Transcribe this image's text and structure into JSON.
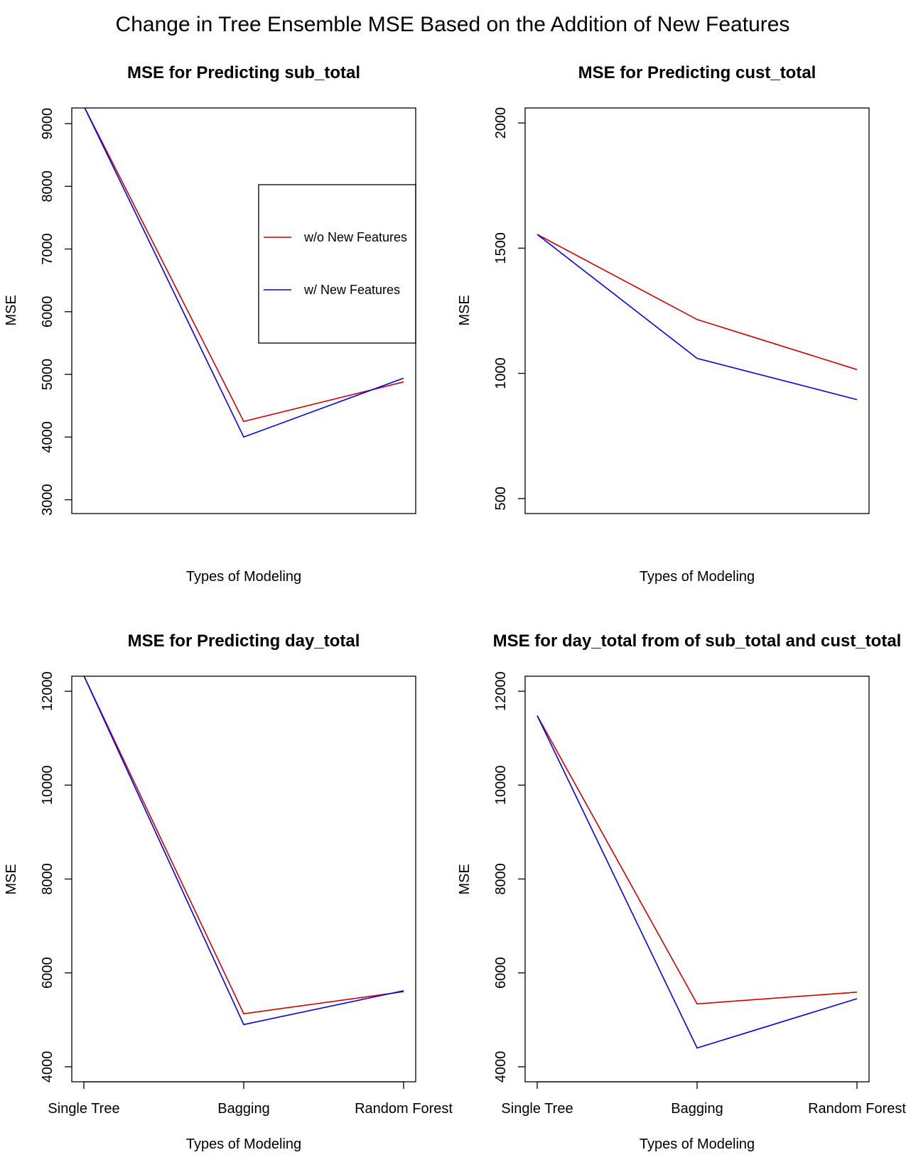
{
  "title": "Change in Tree Ensemble MSE Based on the Addition of New Features",
  "colors": {
    "without": "#d40000",
    "with": "#0000ee"
  },
  "chart_data": [
    {
      "type": "line",
      "title": "MSE for Predicting sub_total",
      "xlabel": "Types of Modeling",
      "ylabel": "MSE",
      "categories": [
        "Single Tree",
        "Bagging",
        "Random Forest"
      ],
      "show_xticks": false,
      "ylim": [
        2780,
        9250
      ],
      "yticks": [
        3000,
        4000,
        5000,
        6000,
        7000,
        8000,
        9000
      ],
      "series": [
        {
          "name": "w/o New Features",
          "color": "#d40000",
          "values": [
            9280,
            4250,
            4880
          ]
        },
        {
          "name": "w/ New Features",
          "color": "#0000ee",
          "values": [
            9280,
            4000,
            4940
          ]
        }
      ],
      "legend": {
        "position": "right",
        "entries": [
          "w/o New Features",
          "w/ New Features"
        ]
      }
    },
    {
      "type": "line",
      "title": "MSE for Predicting cust_total",
      "xlabel": "Types of Modeling",
      "ylabel": "MSE",
      "categories": [
        "Single Tree",
        "Bagging",
        "Random Forest"
      ],
      "show_xticks": false,
      "ylim": [
        440,
        2060
      ],
      "yticks": [
        500,
        1000,
        1500,
        2000
      ],
      "series": [
        {
          "name": "w/o New Features",
          "color": "#d40000",
          "values": [
            1555,
            1215,
            1015
          ]
        },
        {
          "name": "w/ New Features",
          "color": "#0000ee",
          "values": [
            1555,
            1060,
            895
          ]
        }
      ]
    },
    {
      "type": "line",
      "title": "MSE for Predicting day_total",
      "xlabel": "Types of Modeling",
      "ylabel": "MSE",
      "categories": [
        "Single Tree",
        "Bagging",
        "Random Forest"
      ],
      "show_xticks": true,
      "ylim": [
        3680,
        12320
      ],
      "yticks": [
        4000,
        6000,
        8000,
        10000,
        12000
      ],
      "series": [
        {
          "name": "w/o New Features",
          "color": "#d40000",
          "values": [
            12330,
            5130,
            5600
          ]
        },
        {
          "name": "w/ New Features",
          "color": "#0000ee",
          "values": [
            12330,
            4900,
            5620
          ]
        }
      ]
    },
    {
      "type": "line",
      "title": "MSE for day_total from of sub_total and cust_total",
      "xlabel": "Types of Modeling",
      "ylabel": "MSE",
      "categories": [
        "Single Tree",
        "Bagging",
        "Random Forest"
      ],
      "show_xticks": true,
      "ylim": [
        3680,
        12320
      ],
      "yticks": [
        4000,
        6000,
        8000,
        10000,
        12000
      ],
      "series": [
        {
          "name": "w/o New Features",
          "color": "#d40000",
          "values": [
            11480,
            5340,
            5590
          ]
        },
        {
          "name": "w/ New Features",
          "color": "#0000ee",
          "values": [
            11480,
            4400,
            5450
          ]
        }
      ]
    }
  ]
}
